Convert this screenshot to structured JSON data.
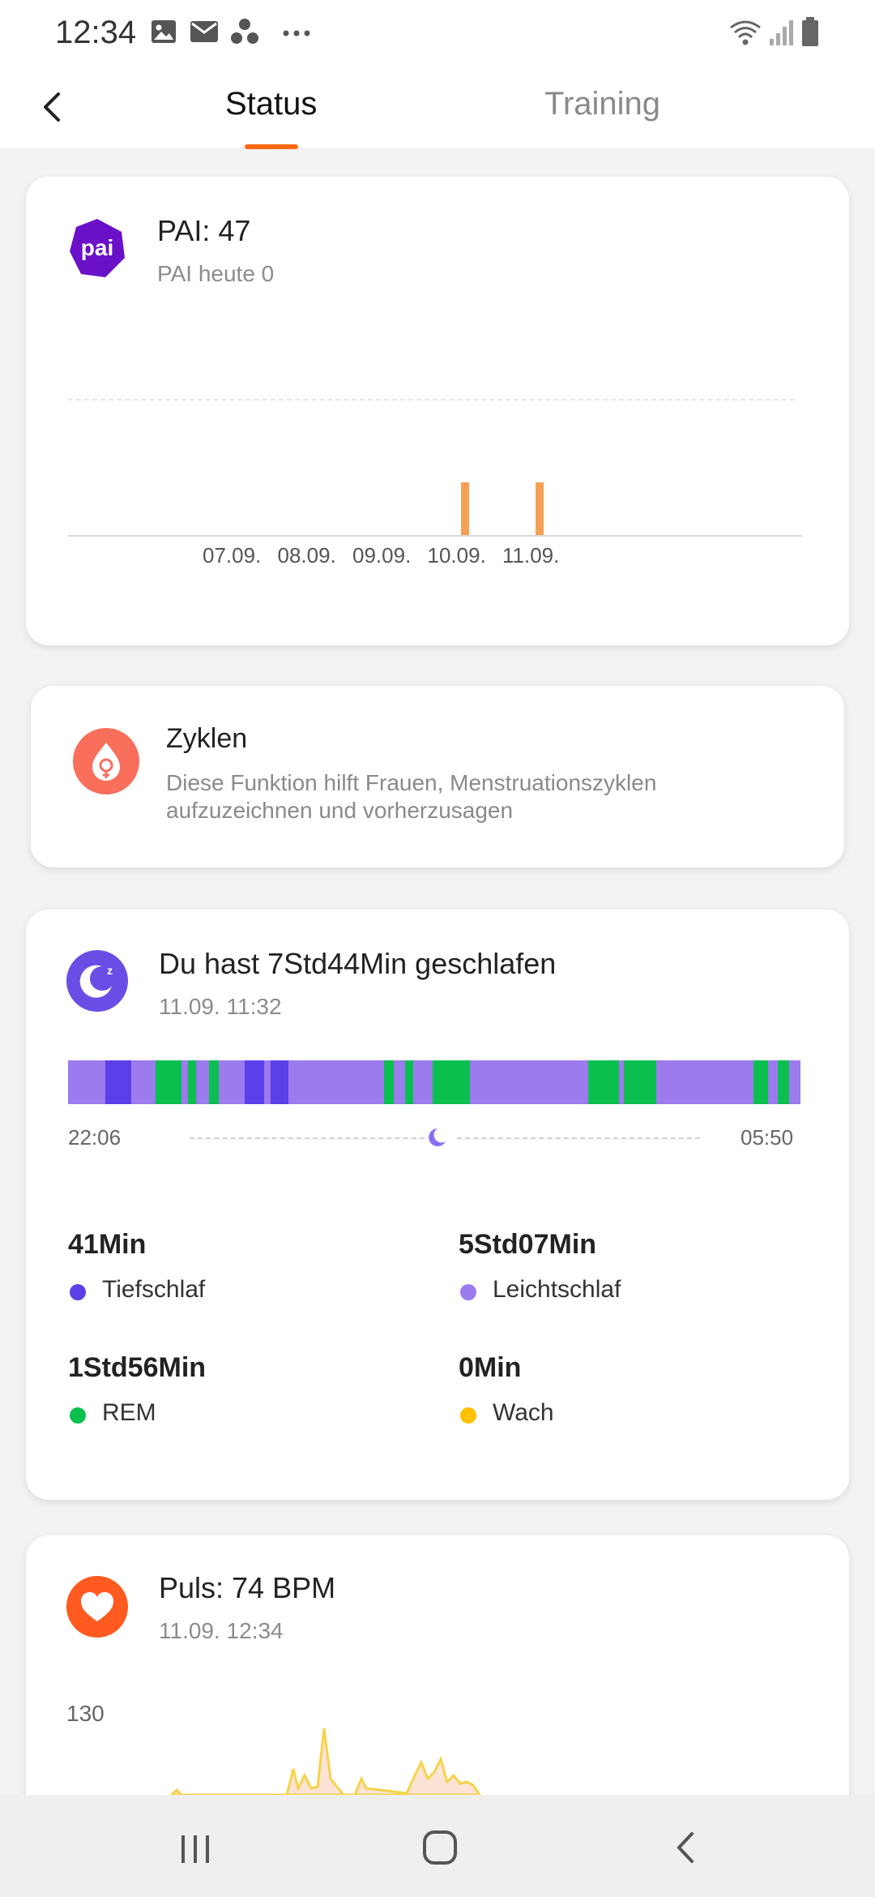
{
  "statusbar": {
    "time": "12:34",
    "icons": [
      "image-icon",
      "mail-icon",
      "app-icon",
      "more-icon",
      "wifi-icon",
      "signal-icon",
      "battery-icon"
    ]
  },
  "header": {
    "back_icon": "back-arrow-icon",
    "tabs": [
      {
        "label": "Status",
        "active": true
      },
      {
        "label": "Training",
        "active": false
      }
    ],
    "accent_color": "#ff6a13"
  },
  "pai_card": {
    "logo_text": "pai",
    "title": "PAI: 47",
    "subtitle": "PAI heute 0",
    "chart_data": {
      "type": "bar",
      "categories": [
        "07.09.",
        "08.09.",
        "09.09.",
        "10.09.",
        "11.09."
      ],
      "values": [
        0,
        0,
        0,
        1,
        1
      ],
      "title": "",
      "xlabel": "",
      "ylabel": "",
      "ylim": [
        0,
        2.6
      ],
      "grid": true,
      "bar_color": "#f5a054"
    }
  },
  "cycles_card": {
    "title": "Zyklen",
    "description_line1": "Diese Funktion hilft Frauen, Menstruationszyklen",
    "description_line2": "aufzuzeichnen und vorherzusagen",
    "icon_color": "#f96f5c"
  },
  "sleep_card": {
    "title": "Du hast 7Std44Min geschlafen",
    "subtitle": "11.09. 11:32",
    "start_time": "22:06",
    "end_time": "05:50",
    "stats": [
      {
        "value": "41Min",
        "label": "Tiefschlaf",
        "color": "#5b3fe8"
      },
      {
        "value": "5Std07Min",
        "label": "Leichtschlaf",
        "color": "#9b7bed"
      },
      {
        "value": "1Std56Min",
        "label": "REM",
        "color": "#0bbf4f"
      },
      {
        "value": "0Min",
        "label": "Wach",
        "color": "#ffc100"
      }
    ]
  },
  "pulse_card": {
    "title": "Puls: 74 BPM",
    "subtitle": "11.09. 12:34",
    "y_axis_label": "130",
    "icon_color": "#ff5a1f"
  },
  "navbar": {
    "icons": [
      "recent-apps-icon",
      "home-icon",
      "back-icon"
    ]
  }
}
